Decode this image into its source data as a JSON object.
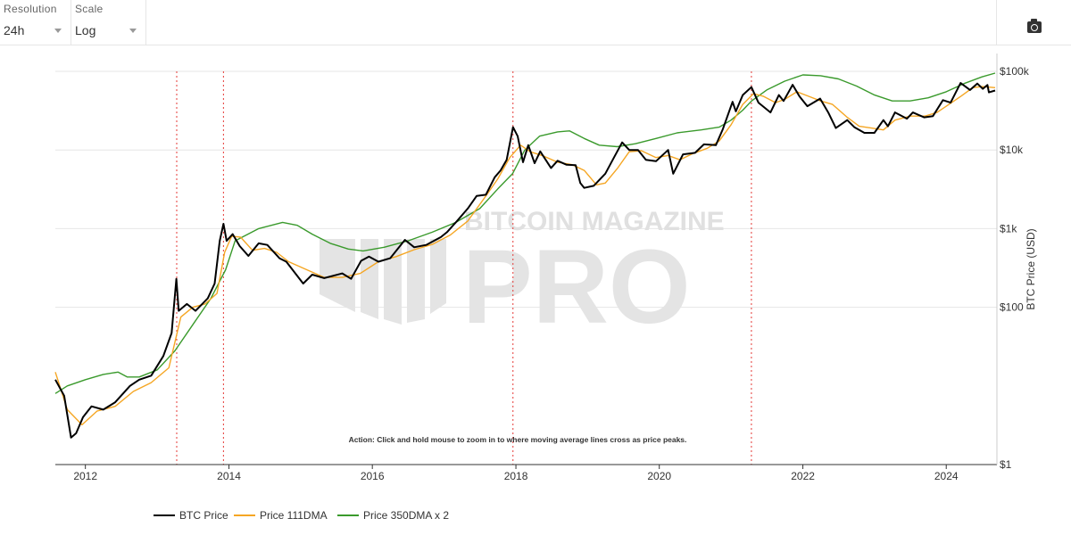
{
  "toolbar": {
    "resolution": {
      "label": "Resolution",
      "value": "24h"
    },
    "scale": {
      "label": "Scale",
      "value": "Log"
    },
    "camera_icon": "camera-icon"
  },
  "watermark": {
    "line1": "BITCOIN MAGAZINE",
    "line2": "PRO"
  },
  "annotation": "Action: Click and hold mouse to zoom in to where moving average lines cross as price peaks.",
  "chart_data": {
    "type": "line",
    "title": "",
    "xlabel": "",
    "ylabel": "BTC Price (USD)",
    "yscale": "log",
    "xlim": [
      "2011-08-01",
      "2024-09-15"
    ],
    "ylim": [
      1,
      100000
    ],
    "x_ticks": [
      "2012",
      "2014",
      "2016",
      "2018",
      "2020",
      "2022",
      "2024"
    ],
    "y_ticks": [
      "$1",
      "$100",
      "$1k",
      "$10k",
      "$100k"
    ],
    "grid": true,
    "legend": "bottom-left",
    "colors": {
      "price": "#000000",
      "dma111": "#f5a623",
      "dma350x2": "#3a9a2c",
      "cross": "#e53935"
    },
    "series": [
      {
        "name": "BTC Price",
        "x": [
          "2011-08-01",
          "2011-09-15",
          "2011-10-20",
          "2011-11-15",
          "2011-12-20",
          "2012-02-01",
          "2012-04-01",
          "2012-06-01",
          "2012-08-15",
          "2012-10-01",
          "2012-12-01",
          "2013-02-01",
          "2013-03-15",
          "2013-04-08",
          "2013-04-20",
          "2013-06-01",
          "2013-07-15",
          "2013-09-15",
          "2013-10-20",
          "2013-11-15",
          "2013-12-04",
          "2013-12-20",
          "2014-01-20",
          "2014-02-25",
          "2014-04-10",
          "2014-06-01",
          "2014-07-15",
          "2014-09-15",
          "2014-10-20",
          "2015-01-14",
          "2015-03-01",
          "2015-05-01",
          "2015-08-01",
          "2015-09-15",
          "2015-11-05",
          "2015-12-15",
          "2016-02-01",
          "2016-04-01",
          "2016-06-15",
          "2016-08-01",
          "2016-10-01",
          "2016-12-15",
          "2017-01-15",
          "2017-03-01",
          "2017-05-01",
          "2017-06-15",
          "2017-08-01",
          "2017-09-15",
          "2017-10-15",
          "2017-11-15",
          "2017-12-17",
          "2018-01-10",
          "2018-02-06",
          "2018-03-05",
          "2018-04-06",
          "2018-05-05",
          "2018-06-29",
          "2018-08-01",
          "2018-09-15",
          "2018-11-01",
          "2018-11-25",
          "2018-12-15",
          "2019-02-01",
          "2019-04-01",
          "2019-05-15",
          "2019-06-26",
          "2019-08-01",
          "2019-09-15",
          "2019-10-25",
          "2019-12-15",
          "2020-02-15",
          "2020-03-12",
          "2020-05-01",
          "2020-07-01",
          "2020-08-15",
          "2020-10-15",
          "2020-11-20",
          "2021-01-08",
          "2021-01-25",
          "2021-03-01",
          "2021-04-14",
          "2021-05-20",
          "2021-07-20",
          "2021-09-01",
          "2021-09-25",
          "2021-11-10",
          "2021-12-15",
          "2022-01-24",
          "2022-03-30",
          "2022-05-10",
          "2022-06-18",
          "2022-08-15",
          "2022-09-20",
          "2022-11-10",
          "2022-12-31",
          "2023-02-15",
          "2023-03-10",
          "2023-04-15",
          "2023-06-15",
          "2023-07-15",
          "2023-09-10",
          "2023-10-25",
          "2023-12-15",
          "2024-01-23",
          "2024-03-14",
          "2024-05-01",
          "2024-06-07",
          "2024-07-05",
          "2024-07-29",
          "2024-08-05",
          "2024-09-06"
        ],
        "values": [
          12,
          7.5,
          2.2,
          2.5,
          4,
          5.5,
          5,
          6.2,
          10,
          12,
          13.5,
          24,
          47,
          230,
          90,
          110,
          90,
          130,
          200,
          700,
          1150,
          700,
          850,
          600,
          450,
          650,
          620,
          420,
          380,
          200,
          260,
          235,
          270,
          230,
          390,
          440,
          380,
          420,
          720,
          580,
          620,
          780,
          900,
          1200,
          1800,
          2600,
          2700,
          4500,
          5500,
          7500,
          19500,
          15000,
          7000,
          11500,
          6800,
          9600,
          5900,
          7300,
          6500,
          6400,
          3800,
          3300,
          3500,
          5000,
          8000,
          12500,
          10000,
          10000,
          7500,
          7200,
          10000,
          5000,
          8800,
          9200,
          11800,
          11500,
          18500,
          41000,
          31000,
          50000,
          63000,
          40000,
          30000,
          50000,
          42000,
          67500,
          48000,
          36000,
          45000,
          30000,
          19000,
          24000,
          19500,
          16500,
          16500,
          24000,
          20000,
          30000,
          25000,
          30000,
          26000,
          27000,
          43000,
          40000,
          71000,
          58000,
          70000,
          60000,
          67000,
          54000,
          57000
        ]
      },
      {
        "name": "Price 111DMA",
        "x": [
          "2011-08-01",
          "2011-10-01",
          "2011-12-15",
          "2012-03-01",
          "2012-06-01",
          "2012-09-01",
          "2012-12-01",
          "2013-03-01",
          "2013-05-01",
          "2013-07-01",
          "2013-09-01",
          "2013-11-01",
          "2013-12-10",
          "2014-01-15",
          "2014-03-01",
          "2014-05-01",
          "2014-07-01",
          "2014-09-01",
          "2014-11-01",
          "2015-02-01",
          "2015-05-01",
          "2015-08-01",
          "2015-11-01",
          "2016-02-01",
          "2016-05-01",
          "2016-08-01",
          "2016-11-01",
          "2017-02-01",
          "2017-05-01",
          "2017-08-01",
          "2017-10-01",
          "2017-12-01",
          "2018-01-25",
          "2018-03-15",
          "2018-05-15",
          "2018-08-01",
          "2018-10-15",
          "2018-12-15",
          "2019-02-15",
          "2019-04-01",
          "2019-06-01",
          "2019-08-01",
          "2019-10-01",
          "2019-12-15",
          "2020-02-15",
          "2020-04-15",
          "2020-06-15",
          "2020-09-01",
          "2020-11-01",
          "2021-01-01",
          "2021-03-01",
          "2021-04-25",
          "2021-06-15",
          "2021-08-15",
          "2021-10-01",
          "2021-12-01",
          "2022-02-01",
          "2022-04-01",
          "2022-06-01",
          "2022-08-15",
          "2022-10-15",
          "2022-12-15",
          "2023-02-15",
          "2023-04-15",
          "2023-07-01",
          "2023-09-15",
          "2023-11-15",
          "2024-01-15",
          "2024-03-15",
          "2024-05-15",
          "2024-07-01",
          "2024-09-06"
        ],
        "values": [
          15,
          5,
          3.2,
          4.8,
          5.5,
          8.5,
          11,
          17,
          75,
          100,
          110,
          150,
          500,
          800,
          780,
          530,
          560,
          500,
          380,
          300,
          240,
          240,
          270,
          380,
          440,
          540,
          630,
          830,
          1250,
          2600,
          4300,
          8000,
          11500,
          9500,
          8500,
          7000,
          6500,
          5500,
          3600,
          3800,
          5800,
          9500,
          9800,
          8000,
          8500,
          7500,
          8900,
          10500,
          13000,
          21000,
          38000,
          52000,
          48000,
          40000,
          44000,
          55000,
          48000,
          42000,
          38000,
          26000,
          20000,
          19000,
          18000,
          24000,
          27000,
          27000,
          30000,
          38000,
          48000,
          62000,
          64000,
          62000
        ]
      },
      {
        "name": "Price 350DMA x 2",
        "x": [
          "2011-08-01",
          "2011-10-01",
          "2012-01-01",
          "2012-04-01",
          "2012-06-15",
          "2012-08-01",
          "2012-10-01",
          "2013-01-01",
          "2013-04-01",
          "2013-07-01",
          "2013-10-01",
          "2013-12-15",
          "2014-02-01",
          "2014-06-01",
          "2014-10-01",
          "2014-12-15",
          "2015-03-01",
          "2015-06-01",
          "2015-09-01",
          "2015-11-15",
          "2016-03-01",
          "2016-07-01",
          "2016-11-01",
          "2017-03-01",
          "2017-07-01",
          "2017-10-01",
          "2017-12-15",
          "2018-02-15",
          "2018-05-01",
          "2018-08-01",
          "2018-10-01",
          "2018-12-15",
          "2019-03-01",
          "2019-06-01",
          "2019-09-01",
          "2019-12-15",
          "2020-04-01",
          "2020-08-01",
          "2020-11-01",
          "2021-01-01",
          "2021-03-01",
          "2021-04-15",
          "2021-07-01",
          "2021-10-01",
          "2022-01-01",
          "2022-04-01",
          "2022-07-01",
          "2022-10-01",
          "2023-01-01",
          "2023-04-01",
          "2023-07-01",
          "2023-10-01",
          "2024-01-01",
          "2024-04-01",
          "2024-07-01",
          "2024-09-06"
        ],
        "values": [
          8,
          10,
          12,
          14,
          15,
          13,
          13,
          16,
          28,
          60,
          130,
          300,
          700,
          1000,
          1200,
          1100,
          850,
          650,
          550,
          520,
          580,
          700,
          900,
          1200,
          1800,
          3200,
          5000,
          10000,
          15000,
          17000,
          17500,
          14000,
          11500,
          11000,
          12000,
          14000,
          16500,
          18000,
          19500,
          24000,
          32000,
          42000,
          58000,
          75000,
          90000,
          88000,
          80000,
          65000,
          50000,
          42000,
          42000,
          46000,
          55000,
          70000,
          85000,
          95000
        ]
      }
    ],
    "vertical_markers": [
      "2013-04-10",
      "2013-12-04",
      "2017-12-17",
      "2021-04-14"
    ]
  },
  "legend": [
    {
      "label": "BTC Price",
      "color": "#000000"
    },
    {
      "label": "Price 111DMA",
      "color": "#f5a623"
    },
    {
      "label": "Price 350DMA x 2",
      "color": "#3a9a2c"
    }
  ]
}
